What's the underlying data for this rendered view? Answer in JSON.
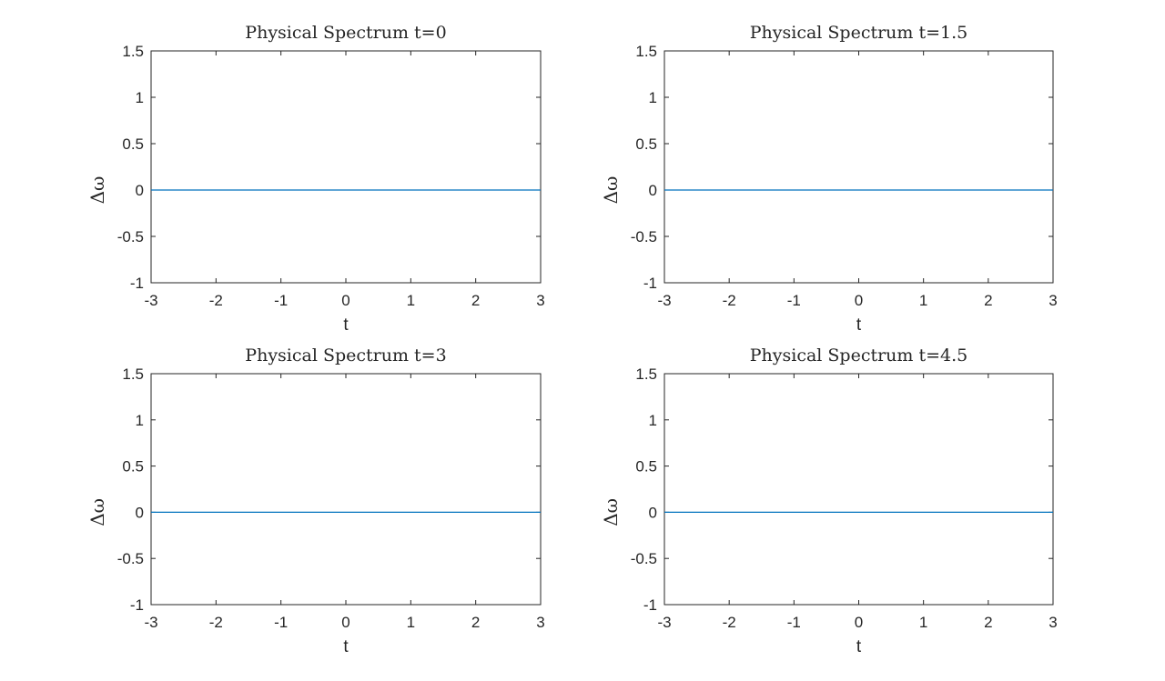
{
  "chart_data": [
    {
      "type": "line",
      "title": "Physical Spectrum t=0",
      "xlabel": "t",
      "ylabel": "Δω",
      "xlim": [
        -3,
        3
      ],
      "ylim": [
        -1,
        1.5
      ],
      "xticks": [
        "-3",
        "-2",
        "-1",
        "0",
        "1",
        "2",
        "3"
      ],
      "yticks": [
        "-1",
        "-0.5",
        "0",
        "0.5",
        "1",
        "1.5"
      ],
      "grid": false,
      "color": "#0072BD",
      "x": [
        -3,
        3
      ],
      "y": [
        0,
        0
      ]
    },
    {
      "type": "line",
      "title": "Physical Spectrum t=1.5",
      "xlabel": "t",
      "ylabel": "Δω",
      "xlim": [
        -3,
        3
      ],
      "ylim": [
        -1,
        1.5
      ],
      "xticks": [
        "-3",
        "-2",
        "-1",
        "0",
        "1",
        "2",
        "3"
      ],
      "yticks": [
        "-1",
        "-0.5",
        "0",
        "0.5",
        "1",
        "1.5"
      ],
      "grid": false,
      "color": "#0072BD",
      "x": [
        -3,
        3
      ],
      "y": [
        0,
        0
      ]
    },
    {
      "type": "line",
      "title": "Physical Spectrum t=3",
      "xlabel": "t",
      "ylabel": "Δω",
      "xlim": [
        -3,
        3
      ],
      "ylim": [
        -1,
        1.5
      ],
      "xticks": [
        "-3",
        "-2",
        "-1",
        "0",
        "1",
        "2",
        "3"
      ],
      "yticks": [
        "-1",
        "-0.5",
        "0",
        "0.5",
        "1",
        "1.5"
      ],
      "grid": false,
      "color": "#0072BD",
      "x": [
        -3,
        3
      ],
      "y": [
        0,
        0
      ]
    },
    {
      "type": "line",
      "title": "Physical Spectrum t=4.5",
      "xlabel": "t",
      "ylabel": "Δω",
      "xlim": [
        -3,
        3
      ],
      "ylim": [
        -1,
        1.5
      ],
      "xticks": [
        "-3",
        "-2",
        "-1",
        "0",
        "1",
        "2",
        "3"
      ],
      "yticks": [
        "-1",
        "-0.5",
        "0",
        "0.5",
        "1",
        "1.5"
      ],
      "grid": false,
      "color": "#0072BD",
      "x": [
        -3,
        3
      ],
      "y": [
        0,
        0
      ]
    }
  ]
}
